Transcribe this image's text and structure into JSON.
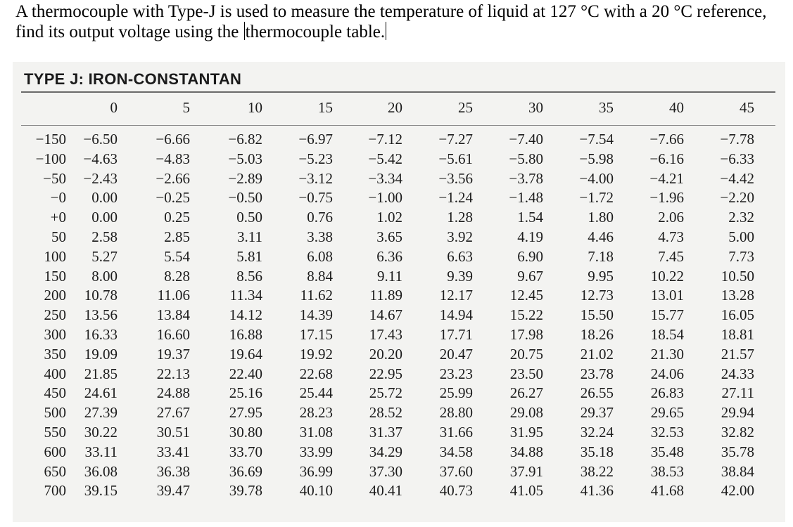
{
  "question": {
    "text_before_caret": "A thermocouple with Type-J is used to measure the temperature of liquid at 127 °C with a 20 °C reference, find its output voltage using the ",
    "text_after_caret": "thermocouple table."
  },
  "table": {
    "title": "TYPE J: IRON-CONSTANTAN",
    "columns": [
      "0",
      "5",
      "10",
      "15",
      "20",
      "25",
      "30",
      "35",
      "40",
      "45"
    ],
    "rows": [
      {
        "label": "−150",
        "values": [
          "−6.50",
          "−6.66",
          "−6.82",
          "−6.97",
          "−7.12",
          "−7.27",
          "−7.40",
          "−7.54",
          "−7.66",
          "−7.78"
        ]
      },
      {
        "label": "−100",
        "values": [
          "−4.63",
          "−4.83",
          "−5.03",
          "−5.23",
          "−5.42",
          "−5.61",
          "−5.80",
          "−5.98",
          "−6.16",
          "−6.33"
        ]
      },
      {
        "label": "−50",
        "values": [
          "−2.43",
          "−2.66",
          "−2.89",
          "−3.12",
          "−3.34",
          "−3.56",
          "−3.78",
          "−4.00",
          "−4.21",
          "−4.42"
        ]
      },
      {
        "label": "−0",
        "values": [
          "0.00",
          "−0.25",
          "−0.50",
          "−0.75",
          "−1.00",
          "−1.24",
          "−1.48",
          "−1.72",
          "−1.96",
          "−2.20"
        ]
      },
      {
        "label": "+0",
        "values": [
          "0.00",
          "0.25",
          "0.50",
          "0.76",
          "1.02",
          "1.28",
          "1.54",
          "1.80",
          "2.06",
          "2.32"
        ]
      },
      {
        "label": "50",
        "values": [
          "2.58",
          "2.85",
          "3.11",
          "3.38",
          "3.65",
          "3.92",
          "4.19",
          "4.46",
          "4.73",
          "5.00"
        ]
      },
      {
        "label": "100",
        "values": [
          "5.27",
          "5.54",
          "5.81",
          "6.08",
          "6.36",
          "6.63",
          "6.90",
          "7.18",
          "7.45",
          "7.73"
        ]
      },
      {
        "label": "150",
        "values": [
          "8.00",
          "8.28",
          "8.56",
          "8.84",
          "9.11",
          "9.39",
          "9.67",
          "9.95",
          "10.22",
          "10.50"
        ]
      },
      {
        "label": "200",
        "values": [
          "10.78",
          "11.06",
          "11.34",
          "11.62",
          "11.89",
          "12.17",
          "12.45",
          "12.73",
          "13.01",
          "13.28"
        ]
      },
      {
        "label": "250",
        "values": [
          "13.56",
          "13.84",
          "14.12",
          "14.39",
          "14.67",
          "14.94",
          "15.22",
          "15.50",
          "15.77",
          "16.05"
        ]
      },
      {
        "label": "300",
        "values": [
          "16.33",
          "16.60",
          "16.88",
          "17.15",
          "17.43",
          "17.71",
          "17.98",
          "18.26",
          "18.54",
          "18.81"
        ]
      },
      {
        "label": "350",
        "values": [
          "19.09",
          "19.37",
          "19.64",
          "19.92",
          "20.20",
          "20.47",
          "20.75",
          "21.02",
          "21.30",
          "21.57"
        ]
      },
      {
        "label": "400",
        "values": [
          "21.85",
          "22.13",
          "22.40",
          "22.68",
          "22.95",
          "23.23",
          "23.50",
          "23.78",
          "24.06",
          "24.33"
        ]
      },
      {
        "label": "450",
        "values": [
          "24.61",
          "24.88",
          "25.16",
          "25.44",
          "25.72",
          "25.99",
          "26.27",
          "26.55",
          "26.83",
          "27.11"
        ]
      },
      {
        "label": "500",
        "values": [
          "27.39",
          "27.67",
          "27.95",
          "28.23",
          "28.52",
          "28.80",
          "29.08",
          "29.37",
          "29.65",
          "29.94"
        ]
      },
      {
        "label": "550",
        "values": [
          "30.22",
          "30.51",
          "30.80",
          "31.08",
          "31.37",
          "31.66",
          "31.95",
          "32.24",
          "32.53",
          "32.82"
        ]
      },
      {
        "label": "600",
        "values": [
          "33.11",
          "33.41",
          "33.70",
          "33.99",
          "34.29",
          "34.58",
          "34.88",
          "35.18",
          "35.48",
          "35.78"
        ]
      },
      {
        "label": "650",
        "values": [
          "36.08",
          "36.38",
          "36.69",
          "36.99",
          "37.30",
          "37.60",
          "37.91",
          "38.22",
          "38.53",
          "38.84"
        ]
      },
      {
        "label": "700",
        "values": [
          "39.15",
          "39.47",
          "39.78",
          "40.10",
          "40.41",
          "40.73",
          "41.05",
          "41.36",
          "41.68",
          "42.00"
        ]
      }
    ]
  }
}
